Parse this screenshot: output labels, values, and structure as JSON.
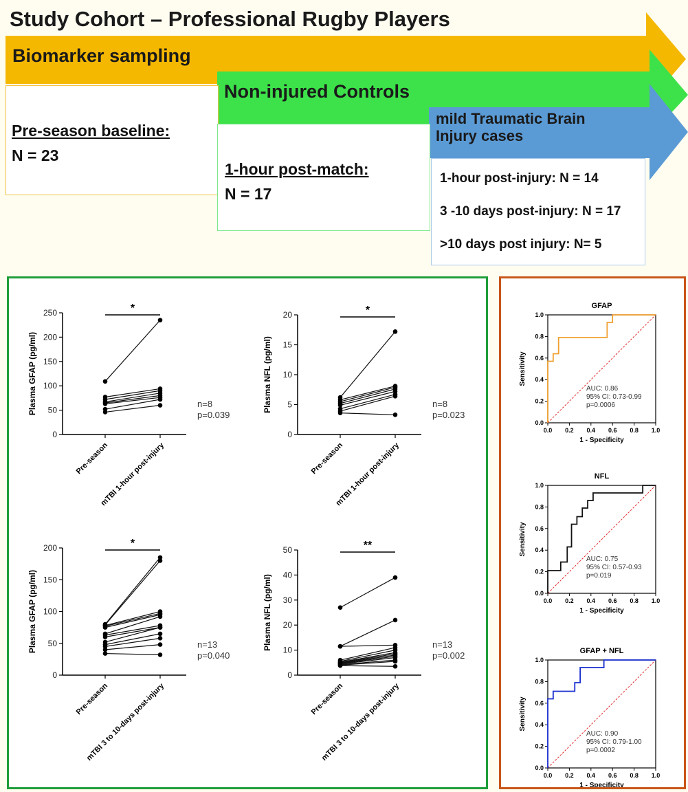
{
  "header": {
    "title": "Study Cohort – Professional Rugby Players"
  },
  "arrows": {
    "biomarker": "Biomarker sampling",
    "controls": "Non-injured Controls",
    "mtbi_line1": "mild Traumatic Brain",
    "mtbi_line2": "Injury cases"
  },
  "boxes": {
    "baseline": {
      "heading": "Pre-season baseline:",
      "n": "N = 23"
    },
    "postmatch": {
      "heading": "1-hour post-match:",
      "n": "N = 17"
    },
    "postinjury": {
      "items": [
        "1-hour post-injury: N = 14",
        "3 -10 days post-injury: N = 17",
        ">10 days post injury: N= 5"
      ]
    }
  },
  "colors": {
    "background": "#fffdf0",
    "orange_arrow": "#f5b800",
    "green_arrow": "#3de24a",
    "blue_arrow": "#5b9bd5",
    "green_panel": "#1e9e3a",
    "orange_panel": "#c8561a",
    "gfap_roc": "#f0a030",
    "nfl_roc": "#111111",
    "combined_roc": "#1a2fd0",
    "diagonal": "#e03030"
  },
  "chart_data": [
    {
      "type": "scatter",
      "subtype": "paired",
      "ylabel": "Plasma GFAP (pg/ml)",
      "categories": [
        "Pre-season",
        "mTBI 1-hour post-injury"
      ],
      "ylim": [
        0,
        250
      ],
      "yticks": [
        "0",
        "50",
        "100",
        "150",
        "200",
        "250"
      ],
      "pairs": [
        [
          109,
          235
        ],
        [
          77,
          94
        ],
        [
          72,
          90
        ],
        [
          67,
          85
        ],
        [
          65,
          80
        ],
        [
          63,
          76
        ],
        [
          52,
          72
        ],
        [
          46,
          60
        ]
      ],
      "significance": "*",
      "n_label": "n=8",
      "p_label": "p=0.039"
    },
    {
      "type": "scatter",
      "subtype": "paired",
      "ylabel": "Plasma NFL (pg/ml)",
      "categories": [
        "Pre-season",
        "mTBI 1-hour post-injury"
      ],
      "ylim": [
        0,
        20
      ],
      "yticks": [
        "0",
        "5",
        "10",
        "15",
        "20"
      ],
      "pairs": [
        [
          6.2,
          17.2
        ],
        [
          5.8,
          8.1
        ],
        [
          5.5,
          7.9
        ],
        [
          5.2,
          7.6
        ],
        [
          4.9,
          7.2
        ],
        [
          4.3,
          6.7
        ],
        [
          3.9,
          6.4
        ],
        [
          3.6,
          3.3
        ]
      ],
      "significance": "*",
      "n_label": "n=8",
      "p_label": "p=0.023"
    },
    {
      "type": "scatter",
      "subtype": "paired",
      "ylabel": "Plasma GFAP (pg/ml)",
      "categories": [
        "Pre-season",
        "mTBI 3 to 10-days post-injury"
      ],
      "ylim": [
        0,
        200
      ],
      "yticks": [
        "0",
        "50",
        "100",
        "150",
        "200"
      ],
      "pairs": [
        [
          80,
          185
        ],
        [
          79,
          180
        ],
        [
          78,
          100
        ],
        [
          77,
          97
        ],
        [
          75,
          95
        ],
        [
          65,
          92
        ],
        [
          63,
          78
        ],
        [
          60,
          75
        ],
        [
          52,
          75
        ],
        [
          48,
          65
        ],
        [
          45,
          58
        ],
        [
          40,
          48
        ],
        [
          34,
          32
        ]
      ],
      "significance": "*",
      "n_label": "n=13",
      "p_label": "p=0.040"
    },
    {
      "type": "scatter",
      "subtype": "paired",
      "ylabel": "Plasma NFL (pg/ml)",
      "categories": [
        "Pre-season",
        "mTBI 3 to 10-days post-injury"
      ],
      "ylim": [
        0,
        50
      ],
      "yticks": [
        "0",
        "10",
        "20",
        "30",
        "40",
        "50"
      ],
      "pairs": [
        [
          27,
          39
        ],
        [
          11.5,
          22
        ],
        [
          11.5,
          12
        ],
        [
          6,
          11
        ],
        [
          5.5,
          10
        ],
        [
          5.2,
          9
        ],
        [
          5,
          8.5
        ],
        [
          4.8,
          8
        ],
        [
          4.6,
          7.5
        ],
        [
          4.4,
          7
        ],
        [
          4.2,
          6
        ],
        [
          4,
          5.5
        ],
        [
          3.8,
          3.5
        ]
      ],
      "significance": "**",
      "n_label": "n=13",
      "p_label": "p=0.002"
    },
    {
      "type": "line",
      "subtype": "roc",
      "title": "GFAP",
      "xlabel": "1 - Specificity",
      "ylabel": "Sensitivity",
      "xlim": [
        0,
        1
      ],
      "ylim": [
        0,
        1
      ],
      "ticks": [
        "0.0",
        "0.2",
        "0.4",
        "0.6",
        "0.8",
        "1.0"
      ],
      "x": [
        0,
        0,
        0.05,
        0.05,
        0.1,
        0.1,
        0.55,
        0.55,
        0.6,
        0.6,
        1.0
      ],
      "y": [
        0,
        0.57,
        0.57,
        0.64,
        0.64,
        0.79,
        0.79,
        0.93,
        0.93,
        1.0,
        1.0
      ],
      "annotations": [
        "AUC: 0.86",
        "95% CI: 0.73-0.99",
        "p=0.0006"
      ]
    },
    {
      "type": "line",
      "subtype": "roc",
      "title": "NFL",
      "xlabel": "1 - Specificity",
      "ylabel": "Sensitivity",
      "xlim": [
        0,
        1
      ],
      "ylim": [
        0,
        1
      ],
      "ticks": [
        "0.0",
        "0.2",
        "0.4",
        "0.6",
        "0.8",
        "1.0"
      ],
      "x": [
        0,
        0,
        0.12,
        0.12,
        0.18,
        0.18,
        0.22,
        0.22,
        0.27,
        0.27,
        0.32,
        0.32,
        0.37,
        0.37,
        0.42,
        0.42,
        0.88,
        0.88,
        1.0
      ],
      "y": [
        0,
        0.21,
        0.21,
        0.29,
        0.29,
        0.43,
        0.43,
        0.64,
        0.64,
        0.71,
        0.71,
        0.79,
        0.79,
        0.86,
        0.86,
        0.93,
        0.93,
        1.0,
        1.0
      ],
      "annotations": [
        "AUC: 0.75",
        "95% CI: 0.57-0.93",
        "p=0.019"
      ]
    },
    {
      "type": "line",
      "subtype": "roc",
      "title": "GFAP + NFL",
      "xlabel": "1 - Specificity",
      "ylabel": "Sensitivity",
      "xlim": [
        0,
        1
      ],
      "ylim": [
        0,
        1
      ],
      "ticks": [
        "0.0",
        "0.2",
        "0.4",
        "0.6",
        "0.8",
        "1.0"
      ],
      "x": [
        0,
        0,
        0.05,
        0.05,
        0.12,
        0.12,
        0.25,
        0.25,
        0.3,
        0.3,
        0.52,
        0.52,
        1.0
      ],
      "y": [
        0,
        0.64,
        0.64,
        0.71,
        0.71,
        0.71,
        0.71,
        0.79,
        0.79,
        0.93,
        0.93,
        1.0,
        1.0
      ],
      "annotations": [
        "AUC: 0.90",
        "95% CI: 0.79-1.00",
        "p=0.0002"
      ]
    }
  ]
}
